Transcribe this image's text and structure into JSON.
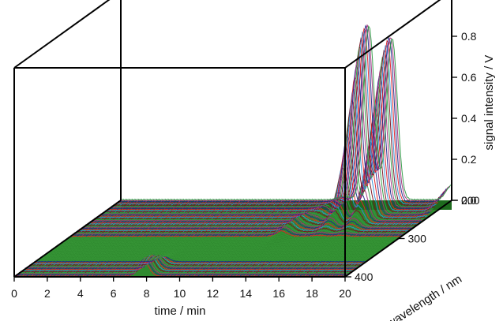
{
  "chart_data": {
    "type": "3d-waterfall",
    "xlabel": "time / min",
    "ylabel": "wavelength / nm",
    "zlabel": "signal intensity / V",
    "x_ticks": [
      0,
      2,
      4,
      6,
      8,
      10,
      12,
      14,
      16,
      18,
      20
    ],
    "y_ticks": [
      200,
      300,
      400
    ],
    "z_ticks": [
      "0.0",
      "0.2",
      "0.4",
      "0.6",
      "0.8"
    ],
    "xlim": [
      0,
      20
    ],
    "ylim": [
      200,
      400
    ],
    "zlim": [
      0,
      0.9
    ],
    "peaks": [
      {
        "time": 7.8,
        "wavelength": 395,
        "intensity": 0.08
      },
      {
        "time": 12.8,
        "wavelength": 270,
        "intensity": 0.05
      },
      {
        "time": 13.5,
        "wavelength": 230,
        "intensity": 0.04
      },
      {
        "time": 15.0,
        "wavelength": 205,
        "intensity": 0.86
      },
      {
        "time": 16.4,
        "wavelength": 205,
        "intensity": 0.8
      },
      {
        "time": 20.0,
        "wavelength": 200,
        "intensity": 0.07
      }
    ],
    "colors": {
      "surface": "#2f8a2f",
      "band_colors": [
        "#e0232a",
        "#1d2a8c",
        "#a0307a",
        "#2e9a44",
        "#7a1020",
        "#2f8ed6"
      ],
      "box": "#000000"
    }
  }
}
